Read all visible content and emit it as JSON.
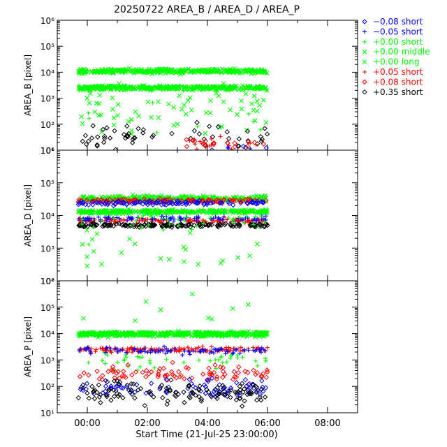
{
  "chart_data": {
    "type": "scatter",
    "title": "20250722 AREA_B / AREA_D / AREA_P",
    "xlabel": "Start Time (21-Jul-25 23:00:00)",
    "x_tick_labels": [
      "00:00",
      "02:00",
      "04:00",
      "06:00",
      "08:00"
    ],
    "x_tick_hours": [
      1,
      3,
      5,
      7,
      9
    ],
    "x_range_hours": [
      0,
      10
    ],
    "data_extent_hours": [
      0.7,
      7.0
    ],
    "legend_position": "right",
    "legend": [
      {
        "label": "−0.08 short",
        "marker": "diamond",
        "color": "#0000ff"
      },
      {
        "label": "−0.05 short",
        "marker": "plus",
        "color": "#0000ff"
      },
      {
        "label": "+0.00 short",
        "marker": "plus",
        "color": "#00ff00"
      },
      {
        "label": "+0.00 middle",
        "marker": "cross",
        "color": "#00ff00"
      },
      {
        "label": "+0.00 long",
        "marker": "cross",
        "color": "#00ff00"
      },
      {
        "label": "+0.05 short",
        "marker": "plus",
        "color": "#ff0000"
      },
      {
        "label": "+0.08 short",
        "marker": "diamond",
        "color": "#ff0000"
      },
      {
        "label": "+0.35 short",
        "marker": "diamond",
        "color": "#000000"
      }
    ],
    "panels": [
      {
        "ylabel": "AREA_B [pixel]",
        "yscale": "log",
        "ylim": [
          10,
          1000000
        ],
        "y_tick_labels": [
          "10¹",
          "10²",
          "10³",
          "10⁴",
          "10⁵",
          "10⁶"
        ],
        "series": [
          {
            "legend_index": 4,
            "center": 11000,
            "spread": 0.08,
            "density": 2.2,
            "outliers_down": 0.25
          },
          {
            "legend_index": 3,
            "center": 2500,
            "spread": 0.08,
            "density": 2.2,
            "outliers_down": 0.2
          },
          {
            "legend_index": 2,
            "center": 2500,
            "spread": 0.1,
            "density": 0.4,
            "outliers_down": 0.2
          },
          {
            "legend_index": 7,
            "center": 30,
            "spread": 0.45,
            "density": 0.35
          },
          {
            "legend_index": 6,
            "center": 18,
            "spread": 0.25,
            "density": 0.25,
            "from_hour": 4.3
          },
          {
            "legend_index": 5,
            "center": 18,
            "spread": 0.25,
            "density": 0.2,
            "from_hour": 4.3
          },
          {
            "legend_index": 0,
            "center": 12,
            "spread": 0.1,
            "density": 0.05,
            "from_hour": 4.5
          },
          {
            "legend_index": 1,
            "center": 12,
            "spread": 0.1,
            "density": 0.05,
            "from_hour": 4.5
          }
        ]
      },
      {
        "ylabel": "AREA_D [pixel]",
        "yscale": "log",
        "ylim": [
          100,
          1000000
        ],
        "y_tick_labels": [
          "10²",
          "10³",
          "10⁴",
          "10⁵",
          "10⁶"
        ],
        "series": [
          {
            "legend_index": 4,
            "center": 33000,
            "spread": 0.08,
            "density": 1.8
          },
          {
            "legend_index": 3,
            "center": 13000,
            "spread": 0.06,
            "density": 1.8,
            "outliers_down": 0.15
          },
          {
            "legend_index": 6,
            "center": 28000,
            "spread": 0.06,
            "density": 0.8
          },
          {
            "legend_index": 0,
            "center": 24000,
            "spread": 0.06,
            "density": 0.6
          },
          {
            "legend_index": 5,
            "center": 7000,
            "spread": 0.08,
            "density": 0.8
          },
          {
            "legend_index": 1,
            "center": 8000,
            "spread": 0.08,
            "density": 0.5
          },
          {
            "legend_index": 7,
            "center": 5000,
            "spread": 0.05,
            "density": 1.0
          },
          {
            "legend_index": 2,
            "center": 8000,
            "spread": 0.3,
            "density": 0.25,
            "outliers_down": 0.15
          }
        ]
      },
      {
        "ylabel": "AREA_P [pixel]",
        "yscale": "log",
        "ylim": [
          10,
          1000000
        ],
        "y_tick_labels": [
          "10¹",
          "10²",
          "10³",
          "10⁴",
          "10⁵",
          "10⁶"
        ],
        "series": [
          {
            "legend_index": 4,
            "center": 10000,
            "spread": 0.07,
            "density": 2.0,
            "outliers_up": 0.1
          },
          {
            "legend_index": 3,
            "center": 9000,
            "spread": 0.07,
            "density": 1.2
          },
          {
            "legend_index": 2,
            "center": 1000,
            "spread": 0.35,
            "density": 0.25
          },
          {
            "legend_index": 5,
            "center": 2500,
            "spread": 0.1,
            "density": 0.8
          },
          {
            "legend_index": 1,
            "center": 2200,
            "spread": 0.12,
            "density": 0.5
          },
          {
            "legend_index": 6,
            "center": 300,
            "spread": 0.3,
            "density": 0.5
          },
          {
            "legend_index": 0,
            "center": 90,
            "spread": 0.35,
            "density": 0.5
          },
          {
            "legend_index": 7,
            "center": 60,
            "spread": 0.4,
            "density": 0.7
          }
        ]
      }
    ]
  }
}
